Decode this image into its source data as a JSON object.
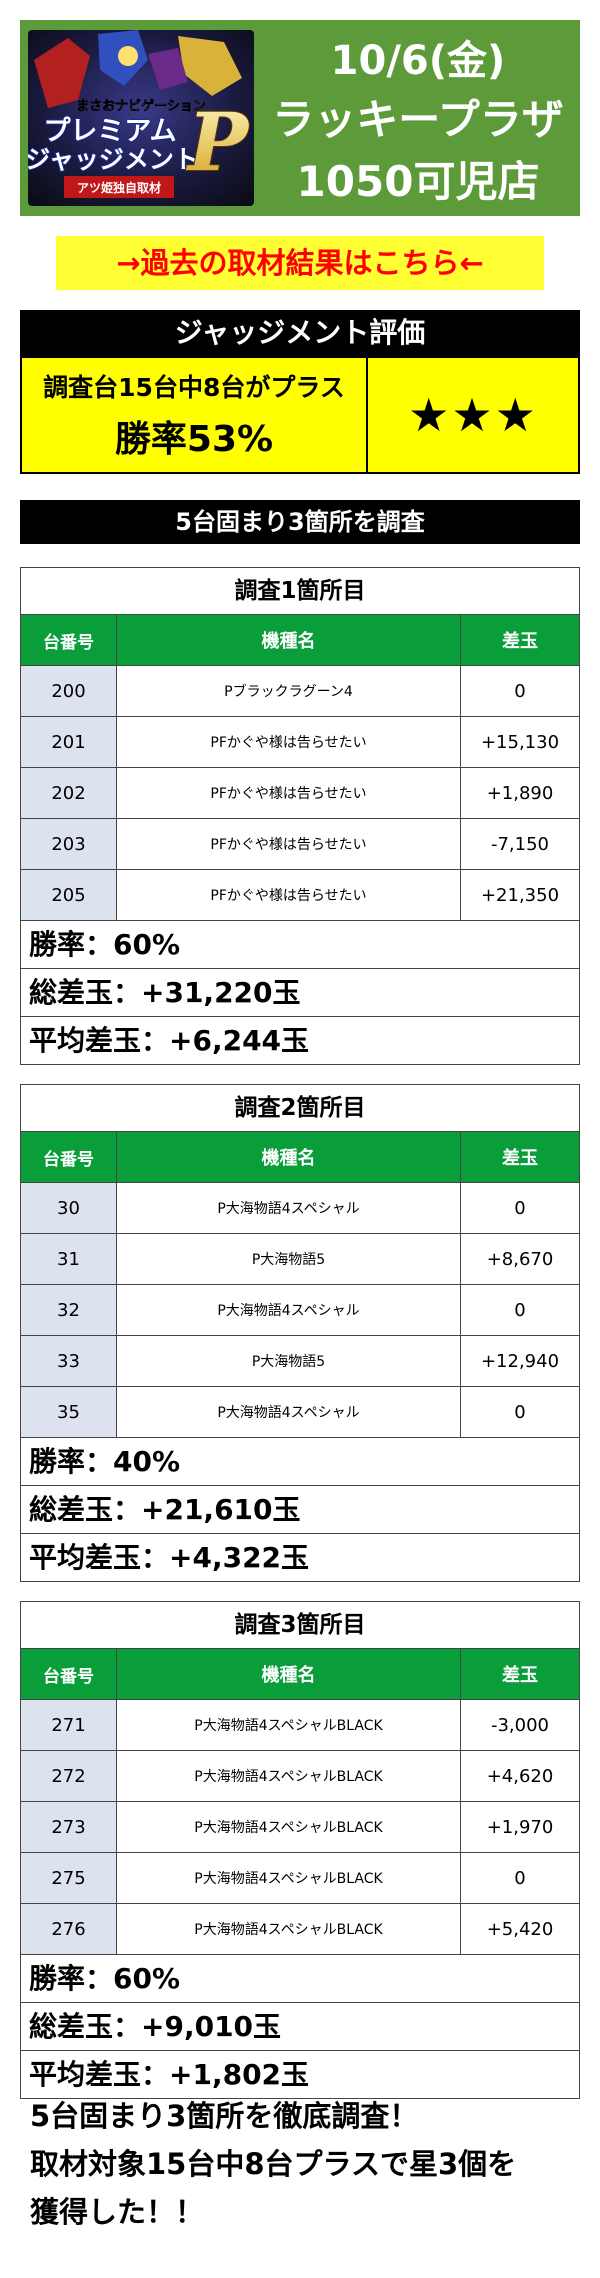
{
  "header": {
    "logo_lines": [
      "まさおナビゲーション",
      "プレミアム",
      "ジャッジメント",
      "P",
      "アツ姫独自取材"
    ],
    "date": "10/6(金)",
    "store_name": "ラッキープラザ",
    "branch": "1050可児店"
  },
  "past_results_link": "→過去の取材結果はこちら←",
  "judgment": {
    "title": "ジャッジメント評価",
    "detail": "調査台15台中8台がプラス",
    "win_rate": "勝率53%",
    "stars": "★★★"
  },
  "survey_header": "5台固まり3箇所を調査",
  "column_headers": {
    "machine_no": "台番号",
    "model": "機種名",
    "balls": "差玉"
  },
  "sections": [
    {
      "title": "調査1箇所目",
      "rows": [
        {
          "no": "200",
          "model": "Pブラックラグーン4",
          "balls": "0"
        },
        {
          "no": "201",
          "model": "PFかぐや様は告らせたい",
          "balls": "+15,130"
        },
        {
          "no": "202",
          "model": "PFかぐや様は告らせたい",
          "balls": "+1,890"
        },
        {
          "no": "203",
          "model": "PFかぐや様は告らせたい",
          "balls": "-7,150"
        },
        {
          "no": "205",
          "model": "PFかぐや様は告らせたい",
          "balls": "+21,350"
        }
      ],
      "win_rate": "勝率：60%",
      "total": "総差玉：+31,220玉",
      "average": "平均差玉：+6,244玉"
    },
    {
      "title": "調査2箇所目",
      "rows": [
        {
          "no": "30",
          "model": "P大海物語4スペシャル",
          "balls": "0"
        },
        {
          "no": "31",
          "model": "P大海物語5",
          "balls": "+8,670"
        },
        {
          "no": "32",
          "model": "P大海物語4スペシャル",
          "balls": "0"
        },
        {
          "no": "33",
          "model": "P大海物語5",
          "balls": "+12,940"
        },
        {
          "no": "35",
          "model": "P大海物語4スペシャル",
          "balls": "0"
        }
      ],
      "win_rate": "勝率：40%",
      "total": "総差玉：+21,610玉",
      "average": "平均差玉：+4,322玉"
    },
    {
      "title": "調査3箇所目",
      "rows": [
        {
          "no": "271",
          "model": "P大海物語4スペシャルBLACK",
          "balls": "-3,000"
        },
        {
          "no": "272",
          "model": "P大海物語4スペシャルBLACK",
          "balls": "+4,620"
        },
        {
          "no": "273",
          "model": "P大海物語4スペシャルBLACK",
          "balls": "+1,970"
        },
        {
          "no": "275",
          "model": "P大海物語4スペシャルBLACK",
          "balls": "0"
        },
        {
          "no": "276",
          "model": "P大海物語4スペシャルBLACK",
          "balls": "+5,420"
        }
      ],
      "win_rate": "勝率：60%",
      "total": "総差玉：+9,010玉",
      "average": "平均差玉：+1,802玉"
    }
  ],
  "summary": [
    "5台固まり3箇所を徹底調査！",
    "取材対象15台中8台プラスで星3個を",
    "獲得した！！"
  ],
  "colors": {
    "header_bg": "#5d9b3a",
    "link_bg": "#ffff33",
    "link_text": "#ff0000",
    "judgment_bg": "#ffff00",
    "table_header_bg": "#0a9e3a",
    "machine_no_bg": "#dce3ef"
  }
}
